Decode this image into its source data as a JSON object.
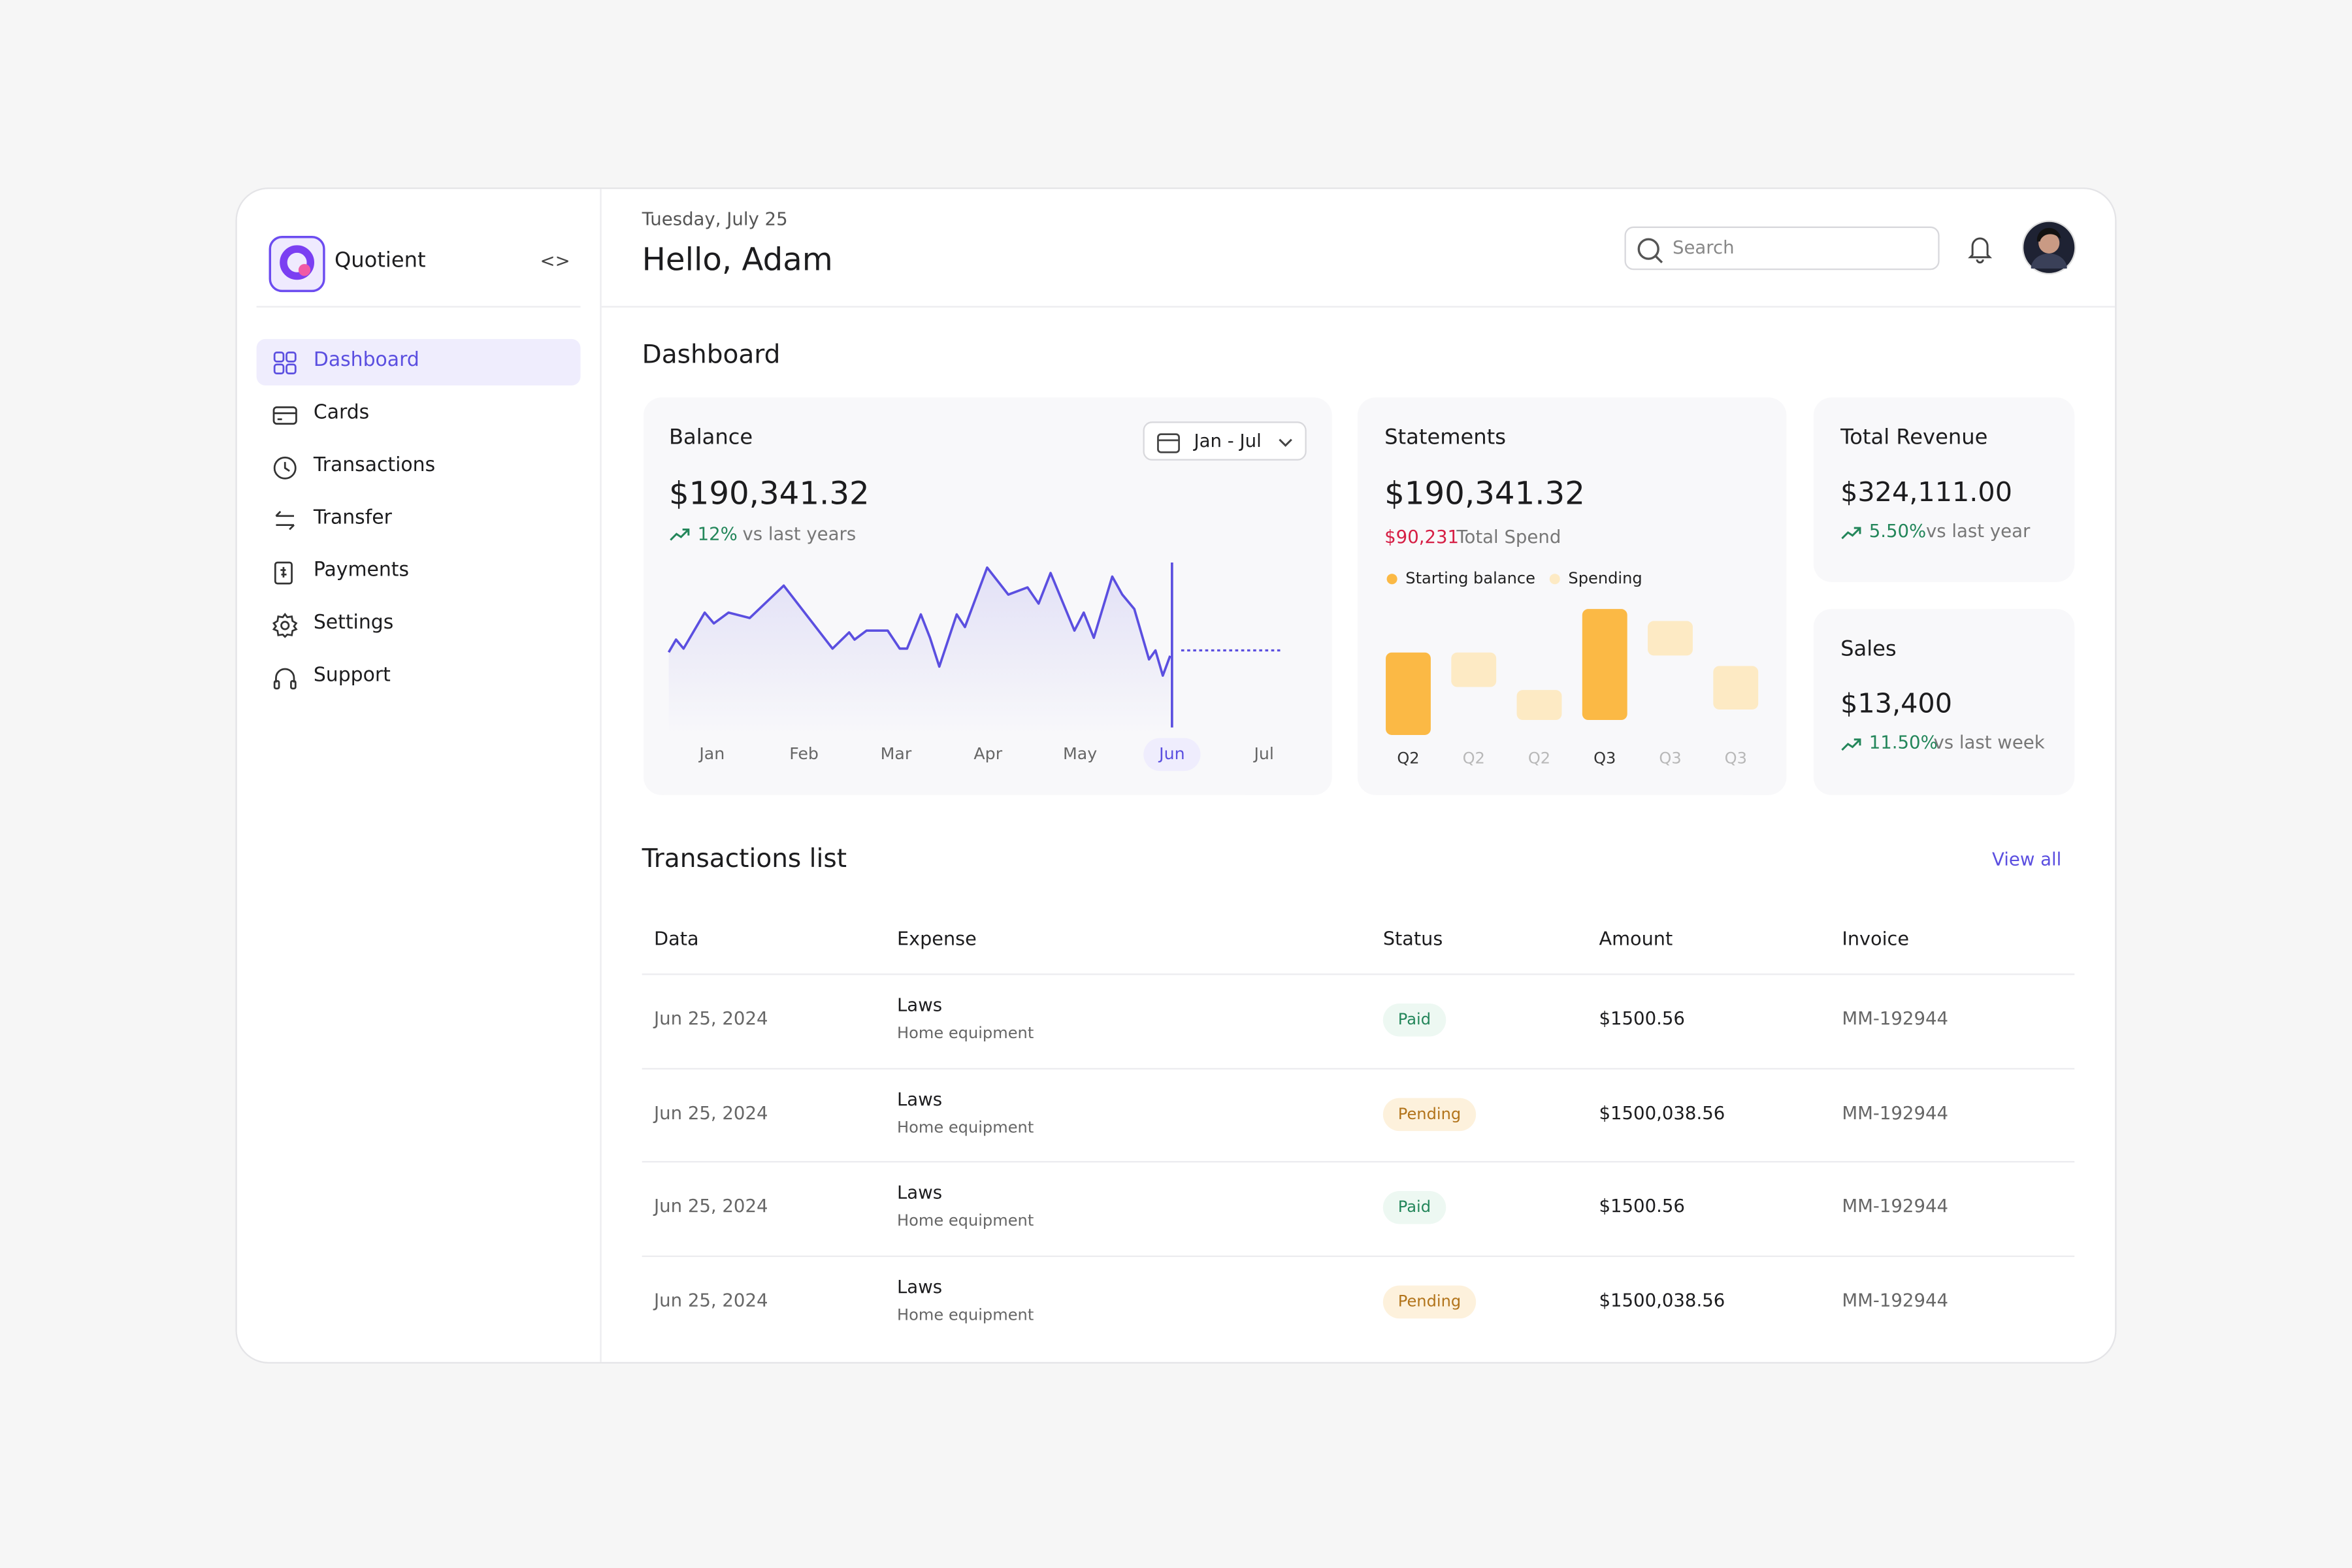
{
  "sidebar": {
    "brand": "Quotient",
    "nav": [
      "Dashboard",
      "Cards",
      "Transactions",
      "Transfer",
      "Payments",
      "Settings",
      "Support"
    ],
    "active": 0
  },
  "header": {
    "date": "Tuesday, July 25",
    "greeting": "Hello, Adam",
    "search_placeholder": "Search"
  },
  "page_title": "Dashboard",
  "balance": {
    "title": "Balance",
    "range": "Jan - Jul",
    "amount": "$190,341.32",
    "change": "12%",
    "change_note": "vs last years",
    "chart_data": {
      "type": "line",
      "color": "#5b4fe0",
      "x": [
        -0.47,
        -0.39,
        -0.31,
        -0.08,
        0.02,
        0.18,
        0.41,
        0.78,
        1.31,
        1.49,
        1.55,
        1.68,
        1.91,
        2.04,
        2.12,
        2.27,
        2.37,
        2.47,
        2.66,
        2.75,
        2.99,
        3.22,
        3.43,
        3.55,
        3.68,
        3.94,
        4.04,
        4.15,
        4.35,
        4.46,
        4.59,
        4.75,
        4.82,
        4.9,
        4.98
      ],
      "values": [
        46,
        53,
        48,
        68,
        62,
        68,
        65,
        83,
        48,
        57,
        53,
        58,
        58,
        48,
        48,
        67,
        54,
        38,
        67,
        60,
        93,
        78,
        82,
        73,
        90,
        58,
        68,
        54,
        88,
        78,
        70,
        42,
        47,
        33,
        44
      ],
      "projection": {
        "x": [
          5.1,
          6.2
        ],
        "values": [
          47,
          47
        ]
      },
      "marker_x": 5,
      "xlim": [
        -0.5,
        6.25
      ],
      "ylim": [
        0,
        100
      ],
      "xticks": [
        {
          "value": 0,
          "label": "Jan"
        },
        {
          "value": 1,
          "label": "Feb"
        },
        {
          "value": 2,
          "label": "Mar"
        },
        {
          "value": 3,
          "label": "Apr"
        },
        {
          "value": 4,
          "label": "May"
        },
        {
          "value": 5,
          "label": "Jun"
        },
        {
          "value": 6,
          "label": "Jul"
        }
      ],
      "highlight_xtick": 5
    }
  },
  "statements": {
    "title": "Statements",
    "amount": "$190,341.32",
    "spend": "$90,231",
    "spend_note": "Total Spend",
    "chart_data": {
      "type": "floating-bar",
      "categories": [
        "Q2",
        "Q2",
        "Q2",
        "Q3",
        "Q3",
        "Q3"
      ],
      "series": [
        {
          "name": "Starting balance",
          "color": "#fbb945",
          "label_color": "#333333",
          "low": [
            0,
            null,
            null,
            10,
            null,
            null
          ],
          "values": [
            55,
            null,
            null,
            84,
            null,
            null
          ]
        },
        {
          "name": "Spending",
          "color": "#fdeac4",
          "label_color": "#b8b8b8",
          "low": [
            null,
            32,
            10,
            null,
            53,
            17
          ],
          "values": [
            null,
            55,
            30,
            null,
            76,
            46
          ]
        }
      ],
      "ylim": [
        0,
        90
      ]
    }
  },
  "revenue": {
    "title": "Total Revenue",
    "amount": "$324,111.00",
    "change": "5.50%",
    "change_note": "vs last year"
  },
  "sales": {
    "title": "Sales",
    "amount": "$13,400",
    "change": "11.50%",
    "change_note": "vs last week"
  },
  "transactions": {
    "title": "Transactions list",
    "view_all": "View all",
    "columns": [
      "Data",
      "Expense",
      "Status",
      "Amount",
      "Invoice"
    ],
    "rows": [
      {
        "date": "Jun 25, 2024",
        "expense": "Laws",
        "category": "Home equipment",
        "status": "Paid",
        "amount": "$1500.56",
        "invoice": "MM-192944"
      },
      {
        "date": "Jun 25, 2024",
        "expense": "Laws",
        "category": "Home equipment",
        "status": "Pending",
        "amount": "$1500,038.56",
        "invoice": "MM-192944"
      },
      {
        "date": "Jun 25, 2024",
        "expense": "Laws",
        "category": "Home equipment",
        "status": "Paid",
        "amount": "$1500.56",
        "invoice": "MM-192944"
      },
      {
        "date": "Jun 25, 2024",
        "expense": "Laws",
        "category": "Home equipment",
        "status": "Pending",
        "amount": "$1500,038.56",
        "invoice": "MM-192944"
      }
    ],
    "status_colors": {
      "Paid": {
        "bg": "#edf8f2",
        "fg": "#23865a"
      },
      "Pending": {
        "bg": "#fdf1dc",
        "fg": "#b2741b"
      }
    }
  }
}
